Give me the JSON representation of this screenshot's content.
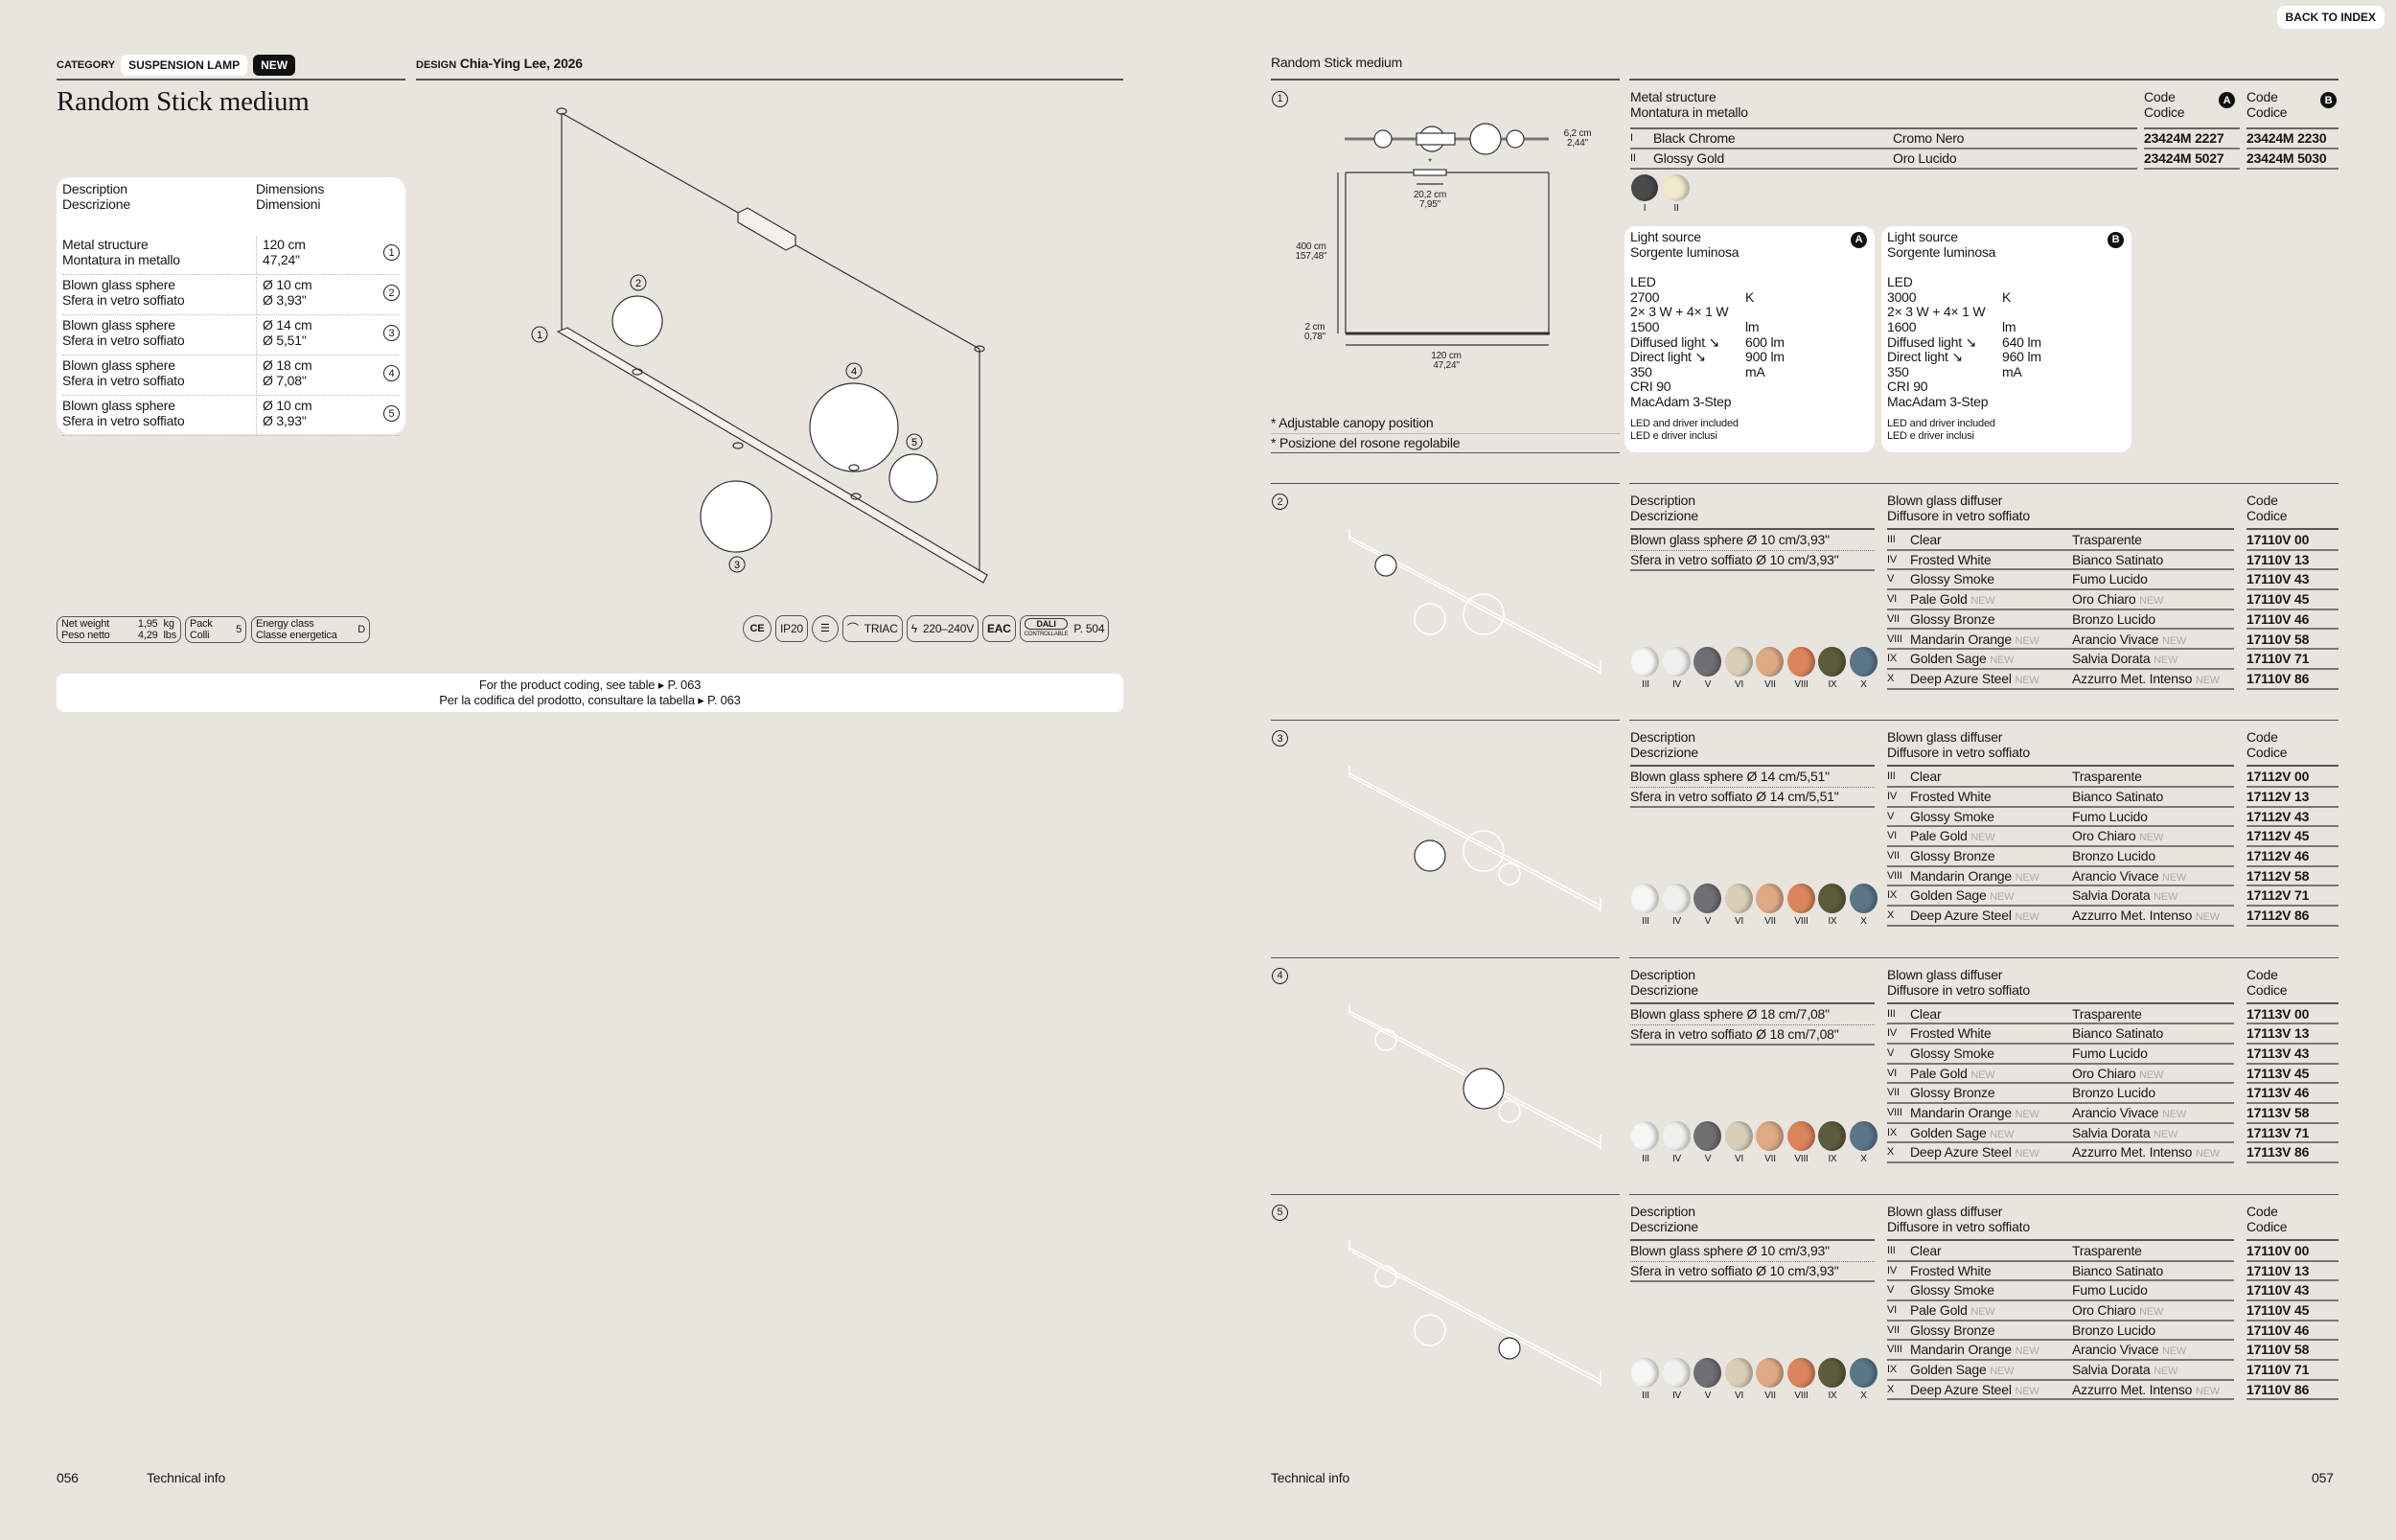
{
  "back_to_index": "BACK TO INDEX",
  "left": {
    "category_label": "CATEGORY",
    "category": "SUSPENSION LAMP",
    "new_badge": "NEW",
    "design_label": "DESIGN",
    "designer": "Chia-Ying Lee, 2026",
    "title": "Random Stick medium",
    "table": {
      "head_desc": [
        "Description",
        "Descrizione"
      ],
      "head_dim": [
        "Dimensions",
        "Dimensioni"
      ],
      "rows": [
        {
          "en": "Metal structure",
          "it": "Montatura in metallo",
          "dim1": "120 cm",
          "dim2": "47,24\"",
          "num": "1"
        },
        {
          "en": "Blown glass sphere",
          "it": "Sfera in vetro soffiato",
          "dim1": "Ø 10 cm",
          "dim2": "Ø 3,93\"",
          "num": "2"
        },
        {
          "en": "Blown glass sphere",
          "it": "Sfera in vetro soffiato",
          "dim1": "Ø 14 cm",
          "dim2": "Ø 5,51\"",
          "num": "3"
        },
        {
          "en": "Blown glass sphere",
          "it": "Sfera in vetro soffiato",
          "dim1": "Ø 18 cm",
          "dim2": "Ø 7,08\"",
          "num": "4"
        },
        {
          "en": "Blown glass sphere",
          "it": "Sfera in vetro soffiato",
          "dim1": "Ø 10 cm",
          "dim2": "Ø 3,93\"",
          "num": "5"
        }
      ]
    },
    "callouts": [
      "1",
      "2",
      "3",
      "4",
      "5"
    ],
    "specs": {
      "weight_label": [
        "Net weight",
        "Peso netto"
      ],
      "weight_values": [
        "1,95",
        "4,29"
      ],
      "weight_units": [
        "kg",
        "lbs"
      ],
      "pack_label": [
        "Pack",
        "Colli"
      ],
      "pack_value": "5",
      "energy_label": [
        "Energy class",
        "Classe energetica"
      ],
      "energy_value": "D"
    },
    "certs": {
      "ce": "CE",
      "ip": "IP20",
      "triac": "TRIAC",
      "voltage": "220–240V",
      "eac": "EAC",
      "dali": "DALI",
      "dali_sub": "CONTROLLABLE",
      "dali_page": "P. 504"
    },
    "coding_note": [
      "For the product coding, see table ▸ P. 063",
      "Per la codifica del prodotto, consultare la tabella ▸ P. 063"
    ],
    "page_number": "056",
    "footer": "Technical info"
  },
  "right": {
    "title": "Random Stick medium",
    "section1": {
      "num": "1",
      "dims": {
        "canopy_h": [
          "6,2 cm",
          "2,44\""
        ],
        "canopy_w": [
          "20,2 cm",
          "7,95\""
        ],
        "height": [
          "400 cm",
          "157,48\""
        ],
        "bar_h": [
          "2 cm",
          "0,78\""
        ],
        "width": [
          "120 cm",
          "47,24\""
        ],
        "asterisk": "*"
      },
      "head": [
        "Metal structure",
        "Montatura in metallo"
      ],
      "code_head": [
        "Code",
        "Codice"
      ],
      "code_a": "A",
      "code_b": "B",
      "finishes": [
        {
          "num": "I",
          "en": "Black Chrome",
          "it": "Cromo Nero",
          "a": "23424M 2227",
          "b": "23424M 2230",
          "color": "#4a4a4c"
        },
        {
          "num": "II",
          "en": "Glossy Gold",
          "it": "Oro Lucido",
          "a": "23424M 5027",
          "b": "23424M 5030",
          "color": "#f1e9cc"
        }
      ],
      "light": [
        {
          "badge": "A",
          "head": [
            "Light source",
            "Sorgente luminosa"
          ],
          "type": "LED",
          "k": "2700",
          "k_u": "K",
          "power": "2× 3 W + 4× 1 W",
          "lm": "1500",
          "lm_u": "lm",
          "diff_l": "Diffused light ↘",
          "diff": "600 lm",
          "dir_l": "Direct light ↘",
          "dir": "900 lm",
          "ma": "350",
          "ma_u": "mA",
          "cri": "CRI 90",
          "mac": "MacAdam 3-Step",
          "note": [
            "LED and driver included",
            "LED e driver inclusi"
          ]
        },
        {
          "badge": "B",
          "head": [
            "Light source",
            "Sorgente luminosa"
          ],
          "type": "LED",
          "k": "3000",
          "k_u": "K",
          "power": "2× 3 W + 4× 1 W",
          "lm": "1600",
          "lm_u": "lm",
          "diff_l": "Diffused light ↘",
          "diff": "640 lm",
          "dir_l": "Direct light ↘",
          "dir": "960 lm",
          "ma": "350",
          "ma_u": "mA",
          "cri": "CRI 90",
          "mac": "MacAdam 3-Step",
          "note": [
            "LED and driver included",
            "LED e driver inclusi"
          ]
        }
      ],
      "footnotes": [
        "* Adjustable canopy position",
        "* Posizione del rosone regolabile"
      ]
    },
    "variant_heads": {
      "desc": [
        "Description",
        "Descrizione"
      ],
      "diff": [
        "Blown glass diffuser",
        "Diffusore in vetro soffiato"
      ],
      "code": [
        "Code",
        "Codice"
      ],
      "new": "NEW"
    },
    "colors": [
      {
        "num": "III",
        "en": "Clear",
        "it": "Trasparente",
        "suffix": "V 00",
        "new": false,
        "swatch": "#f6f6f4"
      },
      {
        "num": "IV",
        "en": "Frosted White",
        "it": "Bianco Satinato",
        "suffix": "V 13",
        "new": false,
        "swatch": "#f0f0ee"
      },
      {
        "num": "V",
        "en": "Glossy Smoke",
        "it": "Fumo Lucido",
        "suffix": "V 43",
        "new": false,
        "swatch": "#6f6f74"
      },
      {
        "num": "VI",
        "en": "Pale Gold",
        "it": "Oro Chiaro",
        "suffix": "V 45",
        "new": true,
        "swatch": "#d8cfb6"
      },
      {
        "num": "VII",
        "en": "Glossy Bronze",
        "it": "Bronzo Lucido",
        "suffix": "V 46",
        "new": false,
        "swatch": "#deaa84"
      },
      {
        "num": "VIII",
        "en": "Mandarin Orange",
        "it": "Arancio Vivace",
        "suffix": "V 58",
        "new": true,
        "swatch": "#dc845b"
      },
      {
        "num": "IX",
        "en": "Golden Sage",
        "it": "Salvia Dorata",
        "suffix": "V 71",
        "new": true,
        "swatch": "#5c5b3b"
      },
      {
        "num": "X",
        "en": "Deep Azure Steel",
        "it": "Azzurro Met. Intenso",
        "suffix": "V 86",
        "new": true,
        "swatch": "#5b7589"
      }
    ],
    "variants": [
      {
        "num": "2",
        "desc": [
          "Blown glass sphere Ø 10 cm/3,93\"",
          "Sfera in vetro soffiato Ø 10 cm/3,93\""
        ],
        "prefix": "17110"
      },
      {
        "num": "3",
        "desc": [
          "Blown glass sphere Ø 14 cm/5,51\"",
          "Sfera in vetro soffiato Ø 14 cm/5,51\""
        ],
        "prefix": "17112"
      },
      {
        "num": "4",
        "desc": [
          "Blown glass sphere Ø 18 cm/7,08\"",
          "Sfera in vetro soffiato Ø 18 cm/7,08\""
        ],
        "prefix": "17113"
      },
      {
        "num": "5",
        "desc": [
          "Blown glass sphere Ø 10 cm/3,93\"",
          "Sfera in vetro soffiato Ø 10 cm/3,93\""
        ],
        "prefix": "17110"
      }
    ],
    "footer": "Technical info",
    "page_number": "057"
  }
}
